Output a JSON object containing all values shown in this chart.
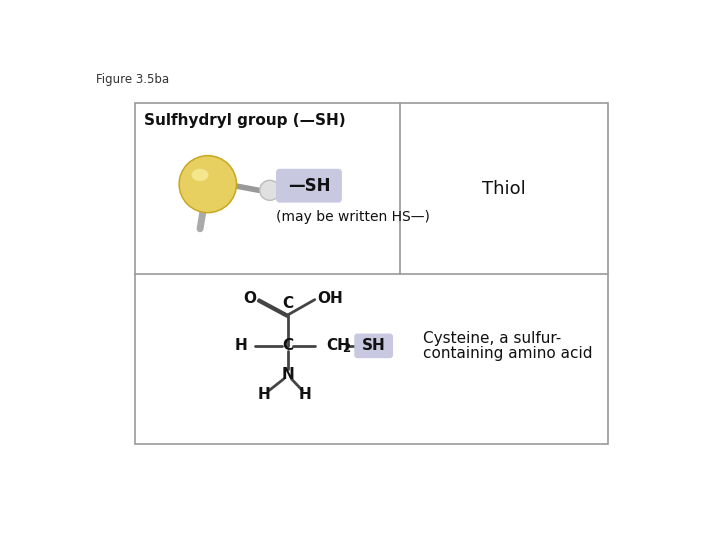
{
  "figure_label": "Figure 3.5ba",
  "background_color": "#ffffff",
  "border_color": "#999999",
  "top_left_label": "Sulfhydryl group (—SH)",
  "top_right_label": "Thiol",
  "bottom_right_label1": "Cysteine, a sulfur-",
  "bottom_right_label2": "containing amino acid",
  "sh_badge_label": "—SH",
  "may_be_written": "(may be written HS—)",
  "sh_badge_color": "#c8c8e0",
  "bond_color": "#444444",
  "sulfur_color_center": "#e8d870",
  "sulfur_color_edge": "#c8b840",
  "hydrogen_color": "#d8d8d8",
  "stick_color": "#aaaaaa"
}
